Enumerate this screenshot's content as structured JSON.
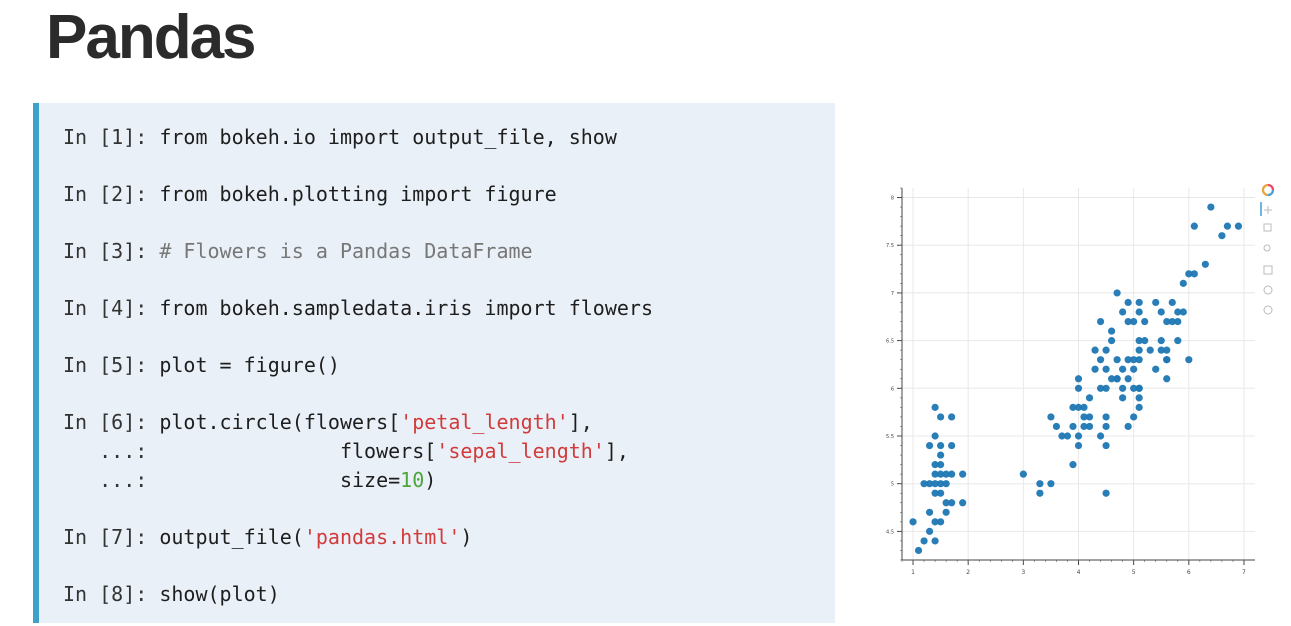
{
  "title": "Pandas",
  "code": [
    {
      "prompt": "In [1]: ",
      "parts": [
        {
          "t": "from bokeh.io import output_file, show",
          "c": ""
        }
      ]
    },
    {
      "prompt": "In [2]: ",
      "parts": [
        {
          "t": "from bokeh.plotting import figure",
          "c": ""
        }
      ]
    },
    {
      "prompt": "In [3]: ",
      "parts": [
        {
          "t": "# Flowers is a Pandas DataFrame",
          "c": "comment"
        }
      ]
    },
    {
      "prompt": "In [4]: ",
      "parts": [
        {
          "t": "from bokeh.sampledata.iris import flowers",
          "c": ""
        }
      ]
    },
    {
      "prompt": "In [5]: ",
      "parts": [
        {
          "t": "plot = figure()",
          "c": ""
        }
      ]
    },
    {
      "prompt": "In [6]: ",
      "parts": [
        {
          "t": "plot.circle(flowers[",
          "c": ""
        },
        {
          "t": "'petal_length'",
          "c": "str"
        },
        {
          "t": "],",
          "c": ""
        }
      ]
    },
    {
      "prompt": "   ...: ",
      "parts": [
        {
          "t": "               flowers[",
          "c": ""
        },
        {
          "t": "'sepal_length'",
          "c": "str"
        },
        {
          "t": "],",
          "c": ""
        }
      ]
    },
    {
      "prompt": "   ...: ",
      "parts": [
        {
          "t": "               size=",
          "c": ""
        },
        {
          "t": "10",
          "c": "num"
        },
        {
          "t": ")",
          "c": ""
        }
      ]
    },
    {
      "prompt": "In [7]: ",
      "parts": [
        {
          "t": "output_file(",
          "c": ""
        },
        {
          "t": "'pandas.html'",
          "c": "str"
        },
        {
          "t": ")",
          "c": ""
        }
      ]
    },
    {
      "prompt": "In [8]: ",
      "parts": [
        {
          "t": "show(plot)",
          "c": ""
        }
      ]
    }
  ],
  "chart_data": {
    "type": "scatter",
    "title": "",
    "xlabel": "",
    "ylabel": "",
    "xlim": [
      0.8,
      7.2
    ],
    "ylim": [
      4.2,
      8.1
    ],
    "x_ticks": [
      1,
      2,
      3,
      4,
      5,
      6,
      7
    ],
    "y_ticks": [
      4.5,
      5,
      5.5,
      6,
      6.5,
      7,
      7.5,
      8
    ],
    "x_tick_labels": [
      "1",
      "2",
      "3",
      "4",
      "5",
      "6",
      "7"
    ],
    "y_tick_labels": [
      "4.5",
      "5",
      "5.5",
      "6",
      "6.5",
      "7",
      "7.5",
      "8"
    ],
    "grid": true,
    "marker_color": "#1f77b4",
    "series": [
      {
        "points": [
          [
            1.0,
            4.6
          ],
          [
            1.1,
            4.3
          ],
          [
            1.2,
            4.4
          ],
          [
            1.2,
            5.0
          ],
          [
            1.3,
            4.7
          ],
          [
            1.3,
            5.0
          ],
          [
            1.3,
            5.4
          ],
          [
            1.3,
            4.5
          ],
          [
            1.4,
            5.1
          ],
          [
            1.4,
            4.9
          ],
          [
            1.4,
            4.6
          ],
          [
            1.4,
            5.0
          ],
          [
            1.4,
            4.4
          ],
          [
            1.4,
            5.5
          ],
          [
            1.4,
            5.2
          ],
          [
            1.4,
            5.8
          ],
          [
            1.5,
            5.4
          ],
          [
            1.5,
            4.9
          ],
          [
            1.5,
            5.1
          ],
          [
            1.5,
            5.3
          ],
          [
            1.5,
            4.6
          ],
          [
            1.5,
            5.0
          ],
          [
            1.5,
            5.7
          ],
          [
            1.5,
            5.2
          ],
          [
            1.6,
            4.8
          ],
          [
            1.6,
            5.0
          ],
          [
            1.6,
            4.7
          ],
          [
            1.6,
            5.1
          ],
          [
            1.7,
            5.4
          ],
          [
            1.7,
            5.1
          ],
          [
            1.7,
            5.7
          ],
          [
            1.7,
            4.8
          ],
          [
            1.9,
            5.1
          ],
          [
            1.9,
            4.8
          ],
          [
            3.0,
            5.1
          ],
          [
            3.3,
            4.9
          ],
          [
            3.3,
            5.0
          ],
          [
            3.5,
            5.0
          ],
          [
            3.5,
            5.7
          ],
          [
            3.6,
            5.6
          ],
          [
            3.7,
            5.5
          ],
          [
            3.8,
            5.5
          ],
          [
            3.9,
            5.6
          ],
          [
            3.9,
            5.8
          ],
          [
            3.9,
            5.2
          ],
          [
            4.0,
            5.5
          ],
          [
            4.0,
            6.0
          ],
          [
            4.0,
            6.1
          ],
          [
            4.0,
            5.8
          ],
          [
            4.0,
            5.4
          ],
          [
            4.1,
            5.7
          ],
          [
            4.1,
            5.6
          ],
          [
            4.1,
            5.8
          ],
          [
            4.2,
            5.7
          ],
          [
            4.2,
            5.9
          ],
          [
            4.2,
            5.6
          ],
          [
            4.3,
            6.2
          ],
          [
            4.3,
            6.4
          ],
          [
            4.4,
            6.7
          ],
          [
            4.4,
            6.3
          ],
          [
            4.4,
            5.5
          ],
          [
            4.4,
            6.0
          ],
          [
            4.5,
            5.7
          ],
          [
            4.5,
            5.6
          ],
          [
            4.5,
            6.0
          ],
          [
            4.5,
            6.2
          ],
          [
            4.5,
            5.4
          ],
          [
            4.5,
            4.9
          ],
          [
            4.5,
            6.4
          ],
          [
            4.6,
            6.1
          ],
          [
            4.6,
            6.6
          ],
          [
            4.6,
            6.5
          ],
          [
            4.7,
            7.0
          ],
          [
            4.7,
            6.1
          ],
          [
            4.7,
            6.1
          ],
          [
            4.7,
            6.3
          ],
          [
            4.8,
            5.9
          ],
          [
            4.8,
            6.8
          ],
          [
            4.8,
            6.2
          ],
          [
            4.9,
            6.9
          ],
          [
            4.9,
            6.3
          ],
          [
            4.9,
            5.6
          ],
          [
            4.9,
            6.1
          ],
          [
            5.0,
            6.7
          ],
          [
            5.0,
            6.0
          ],
          [
            5.0,
            6.3
          ],
          [
            5.1,
            5.8
          ],
          [
            5.1,
            6.0
          ],
          [
            5.1,
            5.9
          ],
          [
            5.1,
            6.9
          ],
          [
            5.1,
            6.4
          ],
          [
            5.1,
            6.5
          ],
          [
            5.1,
            6.8
          ],
          [
            5.1,
            6.0
          ],
          [
            5.1,
            6.3
          ],
          [
            5.2,
            6.7
          ],
          [
            5.2,
            6.5
          ],
          [
            5.3,
            6.4
          ],
          [
            5.4,
            6.9
          ],
          [
            5.4,
            6.2
          ],
          [
            5.5,
            6.8
          ],
          [
            5.5,
            6.4
          ],
          [
            5.5,
            6.5
          ],
          [
            5.6,
            6.3
          ],
          [
            5.6,
            6.4
          ],
          [
            5.6,
            6.7
          ],
          [
            5.7,
            6.9
          ],
          [
            5.7,
            6.7
          ],
          [
            5.8,
            6.5
          ],
          [
            5.8,
            6.7
          ],
          [
            5.8,
            6.8
          ],
          [
            5.9,
            6.8
          ],
          [
            5.9,
            7.1
          ],
          [
            6.0,
            6.3
          ],
          [
            6.0,
            7.2
          ],
          [
            6.1,
            7.2
          ],
          [
            6.1,
            7.7
          ],
          [
            6.3,
            7.3
          ],
          [
            6.4,
            7.9
          ],
          [
            6.6,
            7.6
          ],
          [
            6.7,
            7.7
          ],
          [
            6.9,
            7.7
          ],
          [
            5.0,
            5.7
          ],
          [
            5.6,
            6.1
          ],
          [
            5.6,
            6.3
          ],
          [
            5.0,
            6.2
          ],
          [
            4.8,
            6.0
          ],
          [
            4.9,
            6.7
          ]
        ]
      }
    ]
  },
  "toolbar": {
    "icons": [
      "bokeh-logo-icon",
      "pan-icon",
      "box-zoom-icon",
      "wheel-zoom-icon",
      "save-icon",
      "reset-icon",
      "help-icon"
    ]
  }
}
